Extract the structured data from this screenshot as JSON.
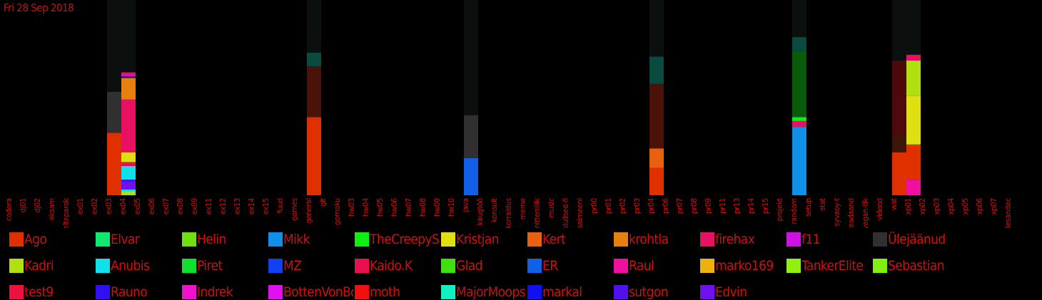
{
  "header": {
    "date": "Fri 28 Sep 2018"
  },
  "chart_data": {
    "type": "bar",
    "stacked": true,
    "title": "",
    "xlabel": "",
    "ylabel": "",
    "ylim": [
      0,
      100
    ],
    "grid": false,
    "legend_position": "bottom",
    "categories": [
      "codera",
      "dj01",
      "dj02",
      "eksam",
      "elteparok",
      "ex01",
      "ex02",
      "ex03",
      "ex04",
      "ex05",
      "ex06",
      "ex07",
      "ex08",
      "ex09",
      "ex11",
      "ex12",
      "ex13",
      "ex14",
      "ex15",
      "fuud",
      "games",
      "general",
      "git",
      "gomoku",
      "hw03",
      "hw04",
      "hw05",
      "hw06",
      "hw07",
      "hw08",
      "hw09",
      "hw10",
      "java",
      "kaugtöö",
      "konsult",
      "korraldus",
      "meme",
      "mitteniiiik",
      "music",
      "olulised-fi",
      "paimeeni",
      "pr00",
      "pr01",
      "pr02",
      "pr03",
      "pr04",
      "pr06",
      "pr07",
      "pr08",
      "pr09",
      "pr11",
      "pr13",
      "pr14",
      "pr15",
      "projekt",
      "random",
      "setup",
      "stat",
      "syvaoy-t",
      "teadaand",
      "vegan-tik",
      "videod",
      "wat",
      "xp01",
      "xp02",
      "xp03",
      "xp04",
      "xp05",
      "xp06",
      "xp07",
      "õlesandec"
    ],
    "bars": [
      {
        "category": "ex03",
        "segments": [
          {
            "user": "Ago",
            "value": 32
          },
          {
            "user": "Ülejäänud",
            "value": 21
          },
          {
            "user": "Ülejäänud (tühi)",
            "value": 47
          }
        ]
      },
      {
        "category": "ex04",
        "segments": [
          {
            "user": "Kadri",
            "value": 2
          },
          {
            "user": "Anubis",
            "value": 1
          },
          {
            "user": "Edvin",
            "value": 4
          },
          {
            "user": "sutgon",
            "value": 1
          },
          {
            "user": "Anubis",
            "value": 7
          },
          {
            "user": "firehax",
            "value": 2
          },
          {
            "user": "Kristjan",
            "value": 5
          },
          {
            "user": "firehax",
            "value": 27
          },
          {
            "user": "krohtla",
            "value": 11
          },
          {
            "user": "Ülejäänud",
            "value": 1
          },
          {
            "user": "BottenVonBot",
            "value": 1
          },
          {
            "user": "test9",
            "value": 1
          },
          {
            "user": "Ülejäänud (tühi)",
            "value": 38
          }
        ]
      },
      {
        "category": "general",
        "segments": [
          {
            "user": "Ago",
            "value": 40
          },
          {
            "user": "moth",
            "value": 26
          },
          {
            "user": "MajorMoopsy",
            "value": 7
          },
          {
            "user": "Ülejäänud (tühi)",
            "value": 27
          }
        ]
      },
      {
        "category": "java",
        "segments": [
          {
            "user": "ER",
            "value": 19
          },
          {
            "user": "Ülejäänud",
            "value": 22
          },
          {
            "user": "Ülejäänud (tühi)",
            "value": 59
          }
        ]
      },
      {
        "category": "pr04",
        "segments": [
          {
            "user": "Ago",
            "value": 14
          },
          {
            "user": "Kert",
            "value": 10
          },
          {
            "user": "moth",
            "value": 33
          },
          {
            "user": "MajorMoopsy",
            "value": 14
          },
          {
            "user": "Ülejäänud (tühi)",
            "value": 29
          }
        ]
      },
      {
        "category": "random",
        "segments": [
          {
            "user": "Mikk",
            "value": 35
          },
          {
            "user": "firehax",
            "value": 3
          },
          {
            "user": "TheCreepySheep",
            "value": 2
          },
          {
            "user": "Piret",
            "value": 34
          },
          {
            "user": "MajorMoopsy",
            "value": 7
          },
          {
            "user": "Ülejäänud (tühi)",
            "value": 19
          }
        ]
      },
      {
        "category": "wat",
        "segments": [
          {
            "user": "Ago",
            "value": 22
          },
          {
            "user": "Kert",
            "value": 9
          },
          {
            "user": "firehax",
            "value": 38
          },
          {
            "user": "Ülejäänud (tühi)",
            "value": 31
          }
        ]
      },
      {
        "category": "xp01",
        "segments": [
          {
            "user": "Raul",
            "value": 8
          },
          {
            "user": "Ago",
            "value": 18
          },
          {
            "user": "Kristjan",
            "value": 25
          },
          {
            "user": "Kadri",
            "value": 18
          },
          {
            "user": "firehax",
            "value": 3
          },
          {
            "user": "Ülejäänud (tühi)",
            "value": 28
          }
        ]
      }
    ],
    "series": [
      {
        "name": "Ago",
        "color": "#e03000"
      },
      {
        "name": "Elvar",
        "color": "#10e870"
      },
      {
        "name": "Helin",
        "color": "#70e010"
      },
      {
        "name": "Mikk",
        "color": "#1090e8"
      },
      {
        "name": "TheCreepySheep",
        "color": "#10f010"
      },
      {
        "name": "Kristjan",
        "color": "#e0e010"
      },
      {
        "name": "Kert",
        "color": "#e86010"
      },
      {
        "name": "krohtla",
        "color": "#e88010"
      },
      {
        "name": "firehax",
        "color": "#e81060"
      },
      {
        "name": "f11",
        "color": "#d010e8"
      },
      {
        "name": "Ülejäänud",
        "color": "#303030"
      },
      {
        "name": "Kadri",
        "color": "#b0e010"
      },
      {
        "name": "Anubis",
        "color": "#10e0e8"
      },
      {
        "name": "Piret",
        "color": "#10e030"
      },
      {
        "name": "MZ",
        "color": "#1040f0"
      },
      {
        "name": "Kaido.K",
        "color": "#e81050"
      },
      {
        "name": "Glad",
        "color": "#40e010"
      },
      {
        "name": "ER",
        "color": "#1060e8"
      },
      {
        "name": "Raul",
        "color": "#f010a0"
      },
      {
        "name": "marko169",
        "color": "#f0b010"
      },
      {
        "name": "TankerElite",
        "color": "#90f010"
      },
      {
        "name": "Sebastian",
        "color": "#80f010"
      },
      {
        "name": "test9",
        "color": "#f01040"
      },
      {
        "name": "Rauno",
        "color": "#3010f0"
      },
      {
        "name": "Indrek",
        "color": "#f010d0"
      },
      {
        "name": "BottenVonBot",
        "color": "#e010f0"
      },
      {
        "name": "moth",
        "color": "#f01010"
      },
      {
        "name": "MajorMoopsy",
        "color": "#10f0c0"
      },
      {
        "name": "markal",
        "color": "#1010f0"
      },
      {
        "name": "sutgon",
        "color": "#5010f0"
      },
      {
        "name": "Edvin",
        "color": "#7010f0"
      }
    ]
  }
}
